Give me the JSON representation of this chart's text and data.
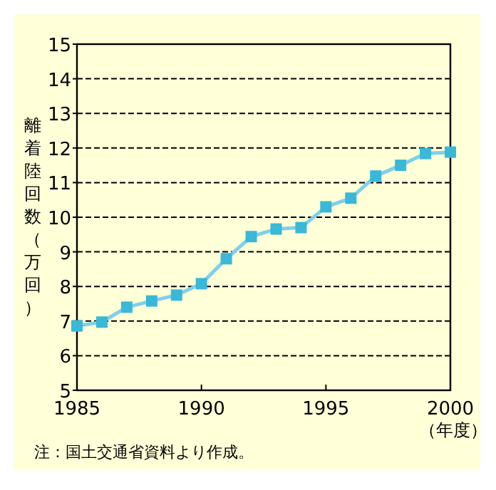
{
  "chart_data": {
    "type": "line",
    "ylabel": "離着陸回数（万回）",
    "xlabel": "（年度）",
    "annotations": [
      "注：国土交通省資料より作成。"
    ],
    "x": [
      1985,
      1986,
      1987,
      1988,
      1989,
      1990,
      1991,
      1992,
      1993,
      1994,
      1995,
      1996,
      1997,
      1998,
      1999,
      2000
    ],
    "series": [
      {
        "color": "#3ab8d8",
        "values": [
          6.86,
          6.97,
          7.4,
          7.58,
          7.75,
          8.08,
          8.8,
          9.44,
          9.66,
          9.7,
          10.3,
          10.55,
          11.19,
          11.5,
          11.84,
          11.88
        ]
      }
    ],
    "xlim": [
      1985,
      2000
    ],
    "xticks": [
      1985,
      1990,
      1995,
      2000
    ],
    "ylim": [
      5,
      15
    ],
    "yticks": [
      5,
      6,
      7,
      8,
      9,
      10,
      11,
      12,
      13,
      14,
      15
    ],
    "grid": "y",
    "marker": "square",
    "line_style": "solid"
  }
}
